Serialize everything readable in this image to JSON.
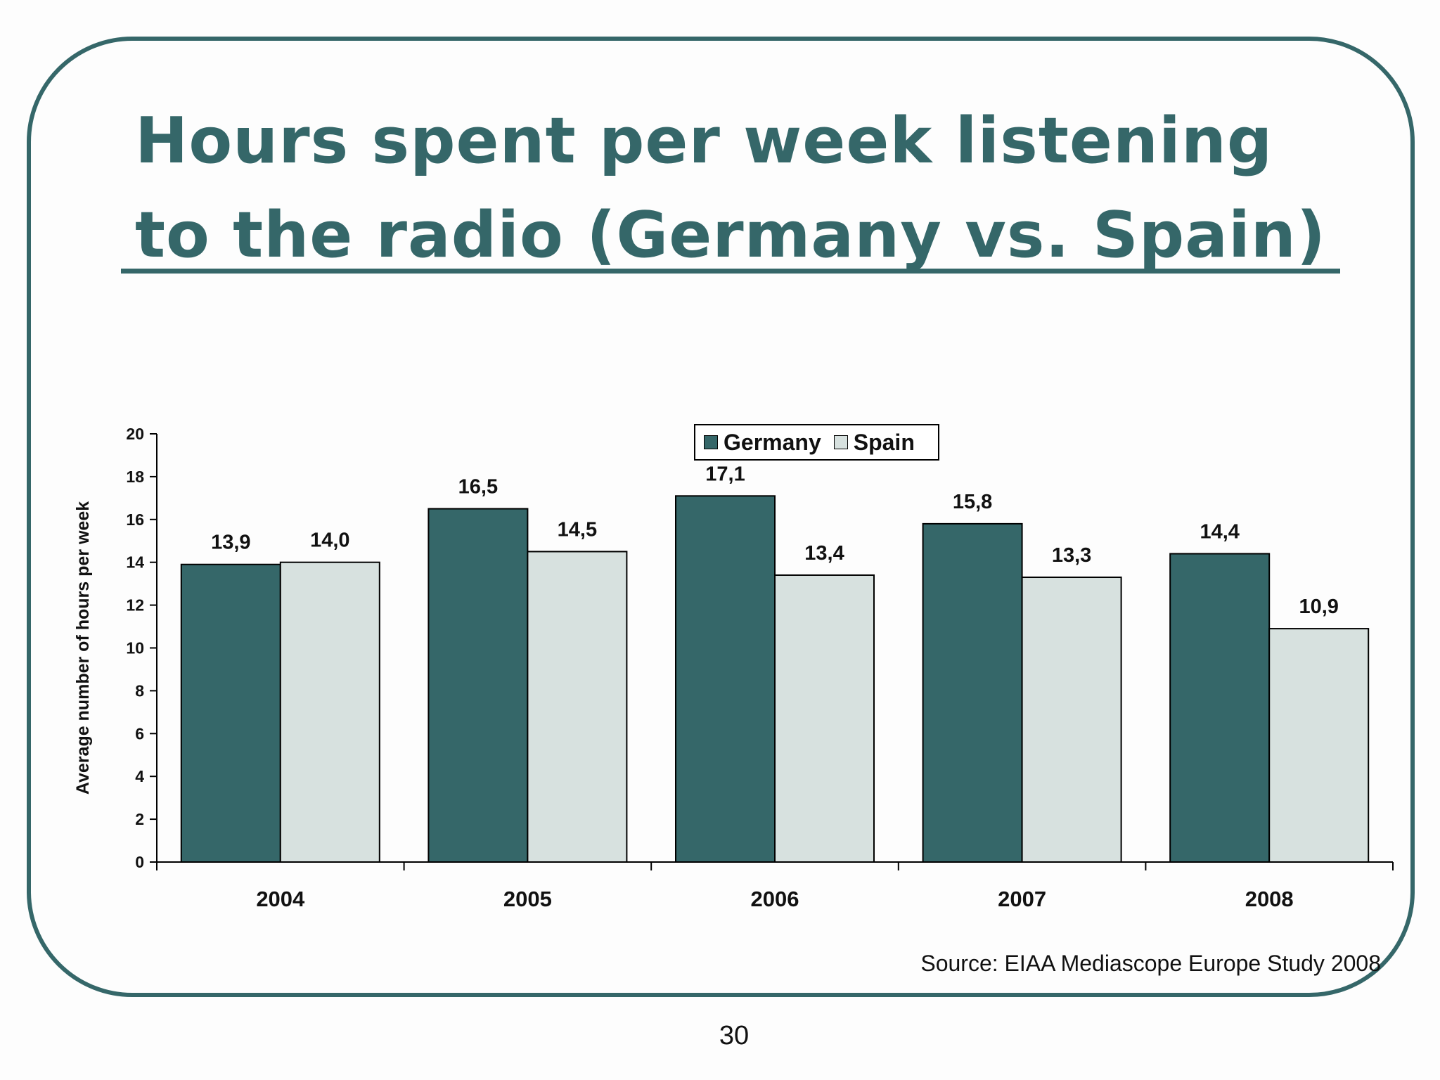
{
  "slide": {
    "title": "Hours spent per week listening to the radio (Germany vs. Spain)",
    "source": "Source: EIAA Mediascope Europe Study 2008",
    "page_number": "30"
  },
  "colors": {
    "accent": "#356769",
    "germany": "#356769",
    "spain": "#d7e1df"
  },
  "chart_data": {
    "type": "bar",
    "title": "",
    "xlabel": "",
    "ylabel": "Average number of hours per week",
    "ylim": [
      0,
      20
    ],
    "yticks": [
      0,
      2,
      4,
      6,
      8,
      10,
      12,
      14,
      16,
      18,
      20
    ],
    "categories": [
      "2004",
      "2005",
      "2006",
      "2007",
      "2008"
    ],
    "series": [
      {
        "name": "Germany",
        "values": [
          13.9,
          16.5,
          17.1,
          15.8,
          14.4
        ],
        "labels": [
          "13,9",
          "16,5",
          "17,1",
          "15,8",
          "14,4"
        ]
      },
      {
        "name": "Spain",
        "values": [
          14.0,
          14.5,
          13.4,
          13.3,
          10.9
        ],
        "labels": [
          "14,0",
          "14,5",
          "13,4",
          "13,3",
          "10,9"
        ]
      }
    ],
    "legend": "top-center",
    "grid": false
  }
}
